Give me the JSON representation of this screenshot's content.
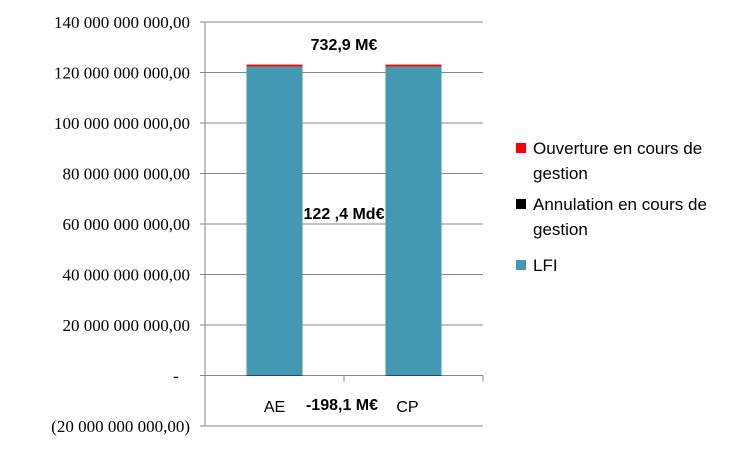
{
  "chart_data": {
    "type": "bar",
    "stacked": true,
    "categories": [
      "AE",
      "CP"
    ],
    "series": [
      {
        "name": "LFI",
        "values": [
          122400000000,
          122400000000
        ],
        "color": "#4299B1"
      },
      {
        "name": "Annulation en cours de gestion",
        "values": [
          -198100000,
          -198100000
        ],
        "color": "#000000"
      },
      {
        "name": "Ouverture en cours de gestion",
        "values": [
          732900000,
          732900000
        ],
        "color": "#FF0000"
      }
    ],
    "ylim": [
      -20000000000,
      140000000000
    ],
    "y_ticks": [
      {
        "value": 140000000000,
        "label": "140 000 000 000,00"
      },
      {
        "value": 120000000000,
        "label": "120 000 000 000,00"
      },
      {
        "value": 100000000000,
        "label": "100 000 000 000,00"
      },
      {
        "value": 80000000000,
        "label": "80 000 000 000,00"
      },
      {
        "value": 60000000000,
        "label": "60 000 000 000,00"
      },
      {
        "value": 40000000000,
        "label": "40 000 000 000,00"
      },
      {
        "value": 20000000000,
        "label": "20 000 000 000,00"
      },
      {
        "value": 0,
        "label": "-"
      },
      {
        "value": -20000000000,
        "label": "(20 000 000 000,00)"
      }
    ],
    "annotations": [
      {
        "text": "732,9 M€",
        "series": "Ouverture en cours de gestion"
      },
      {
        "text": "122 ,4 Md€",
        "series": "LFI"
      },
      {
        "text": "-198,1 M€",
        "series": "Annulation en cours de gestion"
      }
    ],
    "legend": {
      "position": "right",
      "items": [
        {
          "label_lines": [
            "Ouverture en cours de",
            "gestion"
          ],
          "color": "#FF0000"
        },
        {
          "label_lines": [
            "Annulation en cours de",
            "gestion"
          ],
          "color": "#000000"
        },
        {
          "label_lines": [
            "LFI"
          ],
          "color": "#4299B1"
        }
      ]
    },
    "grid": true,
    "gridline_color": "#878787",
    "axis_color": "#878787",
    "text_color": "#000000",
    "title": "",
    "xlabel": "",
    "ylabel": ""
  }
}
